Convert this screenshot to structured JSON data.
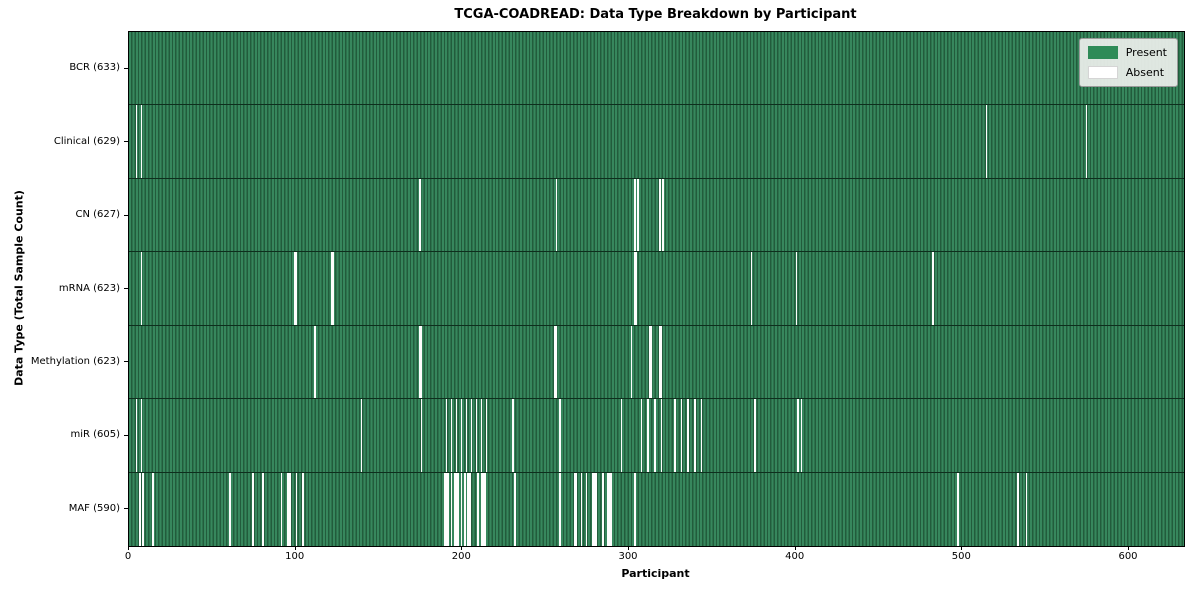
{
  "title": "TCGA-COADREAD: Data Type Breakdown by Participant",
  "axes": {
    "x_label": "Participant",
    "y_label": "Data Type (Total Sample Count)"
  },
  "colors": {
    "present": "#2E8B57",
    "present_stripe_dark": "#225C3C",
    "absent": "#FFFFFF",
    "legend_bg": "#E8ECE8"
  },
  "chart_data": {
    "type": "heatmap",
    "title": "TCGA-COADREAD: Data Type Breakdown by Participant",
    "xlabel": "Participant",
    "ylabel": "Data Type (Total Sample Count)",
    "x_axis": {
      "min": 0,
      "max": 633,
      "ticks": [
        0,
        100,
        200,
        300,
        400,
        500,
        600
      ]
    },
    "n_participants": 633,
    "legend_position": "upper right",
    "grid": false,
    "legend": [
      {
        "label": "Present",
        "color": "#2E8B57"
      },
      {
        "label": "Absent",
        "color": "#FFFFFF"
      }
    ],
    "rows": [
      {
        "data_type": "BCR",
        "label": "BCR (633)",
        "present_count": 633,
        "absent_count": 0,
        "absent_participants": []
      },
      {
        "data_type": "Clinical",
        "label": "Clinical (629)",
        "present_count": 629,
        "absent_count": 4,
        "absent_participants": [
          4,
          7,
          514,
          574
        ]
      },
      {
        "data_type": "CN",
        "label": "CN (627)",
        "present_count": 627,
        "absent_count": 6,
        "absent_participants": [
          174,
          256,
          303,
          305,
          318,
          320
        ]
      },
      {
        "data_type": "mRNA",
        "label": "mRNA (623)",
        "present_count": 623,
        "absent_count": 10,
        "absent_participants": [
          7,
          99,
          100,
          121,
          122,
          303,
          304,
          373,
          400,
          482
        ]
      },
      {
        "data_type": "Methylation",
        "label": "Methylation (623)",
        "present_count": 623,
        "absent_count": 10,
        "absent_participants": [
          111,
          174,
          175,
          255,
          256,
          301,
          312,
          313,
          318,
          319
        ]
      },
      {
        "data_type": "miR",
        "label": "miR (605)",
        "present_count": 605,
        "absent_count": 28,
        "absent_participants": [
          4,
          7,
          139,
          175,
          190,
          193,
          196,
          199,
          202,
          205,
          208,
          211,
          214,
          230,
          258,
          295,
          307,
          311,
          315,
          319,
          327,
          331,
          335,
          339,
          343,
          375,
          401,
          403
        ]
      },
      {
        "data_type": "MAF",
        "label": "MAF (590)",
        "present_count": 590,
        "absent_count": 43,
        "absent_participants": [
          6,
          8,
          14,
          60,
          74,
          80,
          91,
          95,
          96,
          100,
          104,
          189,
          190,
          191,
          193,
          195,
          196,
          197,
          199,
          201,
          203,
          204,
          209,
          211,
          212,
          213,
          231,
          258,
          267,
          268,
          271,
          274,
          278,
          279,
          280,
          284,
          287,
          288,
          289,
          303,
          497,
          533,
          538
        ]
      }
    ]
  }
}
